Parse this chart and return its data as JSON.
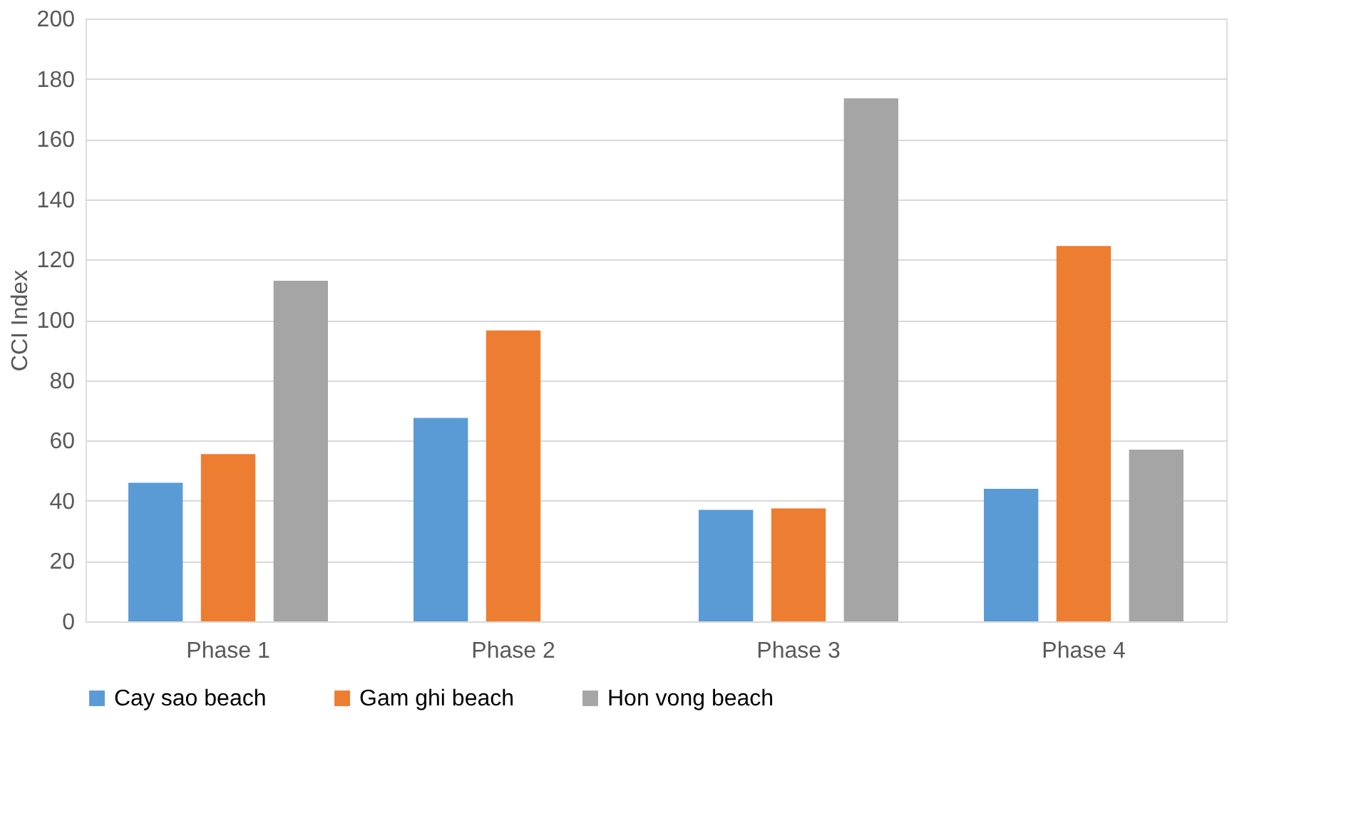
{
  "chart_data": {
    "type": "bar",
    "ylabel": "CCI Index",
    "categories": [
      "Phase 1",
      "Phase 2",
      "Phase 3",
      "Phase 4"
    ],
    "series": [
      {
        "name": "Cay sao beach",
        "color": "#5b9bd5",
        "values": [
          46,
          67.5,
          37,
          44
        ]
      },
      {
        "name": "Gam ghi beach",
        "color": "#ed7d31",
        "values": [
          55.5,
          96.5,
          37.5,
          124.5
        ]
      },
      {
        "name": "Hon vong beach",
        "color": "#a5a5a5",
        "values": [
          113,
          null,
          173.5,
          57
        ]
      }
    ],
    "ylim": [
      0,
      200
    ],
    "yticks": [
      0,
      20,
      40,
      60,
      80,
      100,
      120,
      140,
      160,
      180,
      200
    ],
    "grid": "y",
    "legend": "bottom"
  }
}
